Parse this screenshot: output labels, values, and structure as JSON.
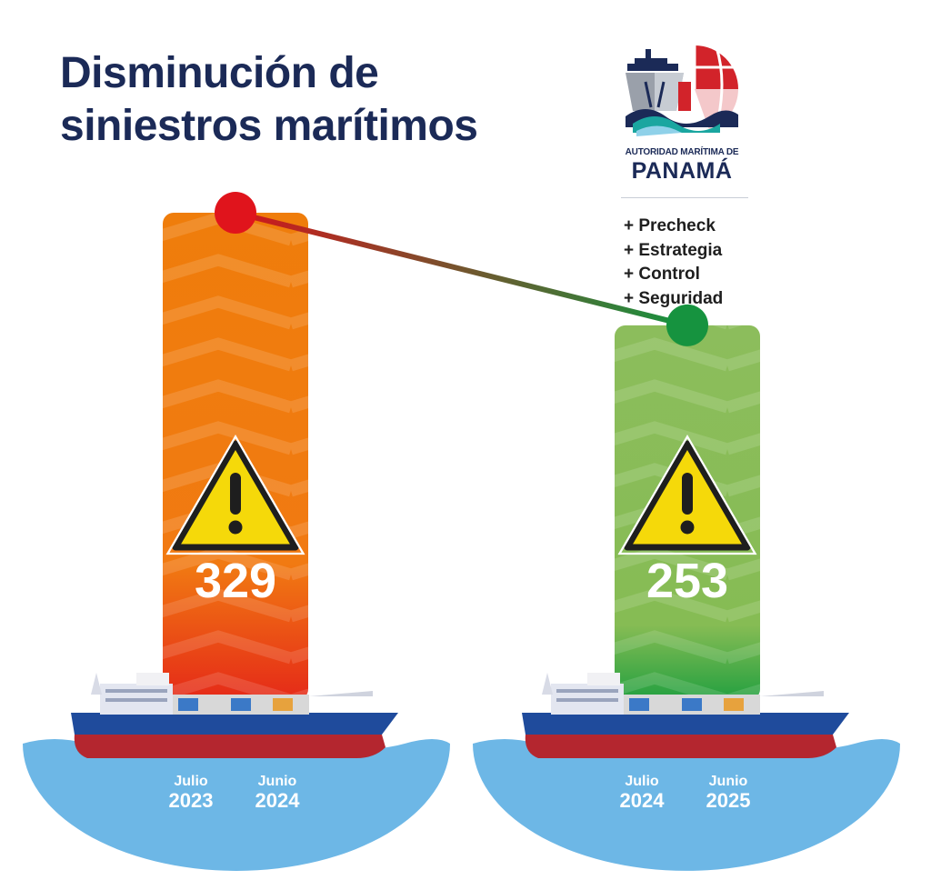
{
  "title_lines": [
    "Disminución de",
    "siniestros marítimos"
  ],
  "logo": {
    "line1": "AUTORIDAD MARÍTIMA DE",
    "line2": "PANAMÁ"
  },
  "bullets": [
    "+ Precheck",
    "+ Estrategia",
    "+ Control",
    "+ Seguridad"
  ],
  "colors": {
    "title": "#1b2a57",
    "bar1": "#ef7d0b",
    "bar2": "#82b74d",
    "high": "#e0141c",
    "low": "#16933f",
    "sea": "#6db7e6"
  },
  "chart_data": {
    "type": "bar",
    "categories": [
      "Julio 2023 – Junio 2024",
      "Julio 2024 – Junio 2025"
    ],
    "values": [
      329,
      253
    ],
    "periods": [
      {
        "from_month": "Julio",
        "from_year": "2023",
        "to_month": "Junio",
        "to_year": "2024"
      },
      {
        "from_month": "Julio",
        "from_year": "2024",
        "to_month": "Junio",
        "to_year": "2025"
      }
    ],
    "icon": "warning-triangle-icon",
    "trend_line": true
  }
}
